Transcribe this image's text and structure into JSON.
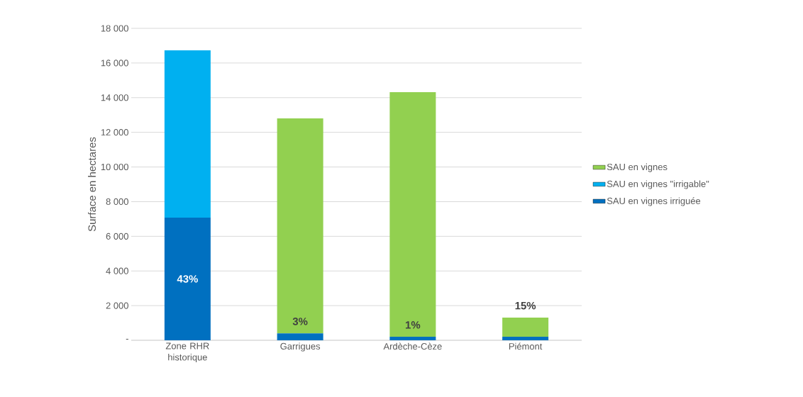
{
  "chart_data": {
    "type": "bar",
    "stacked": true,
    "ylabel": "Surface en hectares",
    "categories": [
      "Zone RHR historique",
      "Garrigues",
      "Ardèche-Cèze",
      "Piémont"
    ],
    "series": [
      {
        "name": "SAU en vignes irriguée",
        "color": "#0070c0",
        "values": [
          7080,
          400,
          200,
          200
        ]
      },
      {
        "name": "SAU en vignes \"irrigable\"",
        "color": "#00b0f0",
        "values": [
          9650,
          0,
          0,
          0
        ]
      },
      {
        "name": "SAU en vignes",
        "color": "#92d050",
        "values": [
          0,
          12400,
          14120,
          1110
        ]
      }
    ],
    "ylim": [
      0,
      18000
    ],
    "yticks": [
      {
        "value": 0,
        "label": "-"
      },
      {
        "value": 2000,
        "label": "2 000"
      },
      {
        "value": 4000,
        "label": "4 000"
      },
      {
        "value": 6000,
        "label": "6 000"
      },
      {
        "value": 8000,
        "label": "8 000"
      },
      {
        "value": 10000,
        "label": "10 000"
      },
      {
        "value": 12000,
        "label": "12 000"
      },
      {
        "value": 14000,
        "label": "14 000"
      },
      {
        "value": 16000,
        "label": "16 000"
      },
      {
        "value": 18000,
        "label": "18 000"
      }
    ],
    "annotations": [
      "43%",
      "3%",
      "1%",
      "15%"
    ],
    "grid": "y",
    "legend": "right"
  }
}
